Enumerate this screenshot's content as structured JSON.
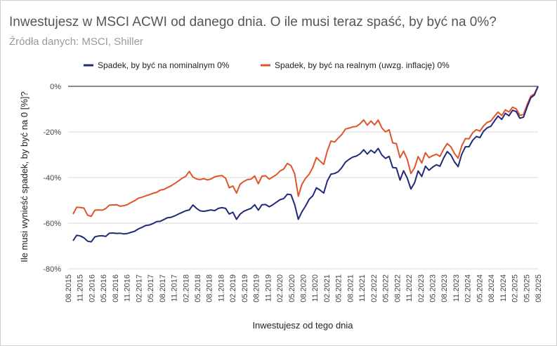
{
  "header": {
    "title": "Inwestujesz w MSCI ACWI od danego dnia. O ile musi teraz spaść, by być na 0%?",
    "subtitle": "Źródła danych: MSCI, Shiller"
  },
  "colors": {
    "nominal": "#1f2a7a",
    "real": "#e0542a",
    "grid": "#d9d9d9",
    "zero_line": "#444444"
  },
  "chart_data": {
    "type": "line",
    "xlabel": "Inwestujesz od tego dnia",
    "ylabel": "Ile musi wynieść spadek, by być na 0 [%]?",
    "ylim": [
      -80,
      0
    ],
    "yticks": [
      0,
      -20,
      -40,
      -60,
      -80
    ],
    "ytick_labels": [
      "0%",
      "-20%",
      "-40%",
      "-60%",
      "-80%"
    ],
    "grid": true,
    "legend_position": "top",
    "x_tick_labels": [
      "08.2015",
      "11.2015",
      "02.2016",
      "05.2016",
      "08.2016",
      "11.2016",
      "02.2017",
      "05.2017",
      "08.2017",
      "11.2017",
      "02.2018",
      "05.2018",
      "08.2018",
      "11.2018",
      "02.2019",
      "05.2019",
      "08.2019",
      "11.2019",
      "02.2020",
      "05.2020",
      "08.2020",
      "11.2020",
      "02.2021",
      "05.2021",
      "08.2021",
      "11.2021",
      "02.2022",
      "05.2022",
      "08.2022",
      "11.2022",
      "02.2023",
      "05.2023",
      "08.2023",
      "11.2023",
      "02.2024",
      "05.2024",
      "08.2024",
      "11.2024",
      "02.2025",
      "05.2025",
      "08.2025"
    ],
    "x_start": "08.2015",
    "x_end": "08.2025",
    "series": [
      {
        "name": "Spadek, by być na nominalnym 0%",
        "values": [
          -67.7,
          -65.3,
          -65.6,
          -66.4,
          -67.9,
          -68.2,
          -66.0,
          -65.6,
          -65.5,
          -65.8,
          -64.4,
          -64.3,
          -64.5,
          -64.4,
          -64.7,
          -64.5,
          -64.0,
          -63.5,
          -62.5,
          -61.8,
          -61.0,
          -60.8,
          -60.2,
          -59.3,
          -59.2,
          -58.4,
          -57.6,
          -57.4,
          -56.8,
          -56.0,
          -55.3,
          -54.6,
          -54.2,
          -52.0,
          -53.5,
          -54.6,
          -54.8,
          -54.5,
          -54.2,
          -54.5,
          -53.5,
          -53.2,
          -53.5,
          -56.0,
          -55.2,
          -58.3,
          -56.0,
          -54.8,
          -54.1,
          -53.5,
          -51.9,
          -54.3,
          -51.9,
          -51.8,
          -52.8,
          -51.9,
          -50.8,
          -49.7,
          -49.2,
          -47.3,
          -47.5,
          -51.8,
          -58.3,
          -55.0,
          -52.5,
          -49.5,
          -48.0,
          -44.5,
          -45.5,
          -46.8,
          -41.5,
          -38.5,
          -38.2,
          -37.4,
          -35.6,
          -33.2,
          -32.0,
          -31.0,
          -30.6,
          -29.6,
          -27.8,
          -29.7,
          -28.0,
          -29.2,
          -27.2,
          -30.1,
          -31.6,
          -30.7,
          -35.6,
          -35.8,
          -41.1,
          -37.0,
          -40.2,
          -45.0,
          -42.3,
          -37.1,
          -39.5,
          -35.0,
          -36.8,
          -35.4,
          -34.4,
          -35.0,
          -31.5,
          -28.6,
          -30.1,
          -33.1,
          -35.2,
          -29.8,
          -26.5,
          -26.5,
          -23.7,
          -22.0,
          -22.5,
          -19.7,
          -18.2,
          -17.5,
          -15.2,
          -13.0,
          -14.5,
          -11.8,
          -12.9,
          -10.5,
          -11.1,
          -14.0,
          -13.5,
          -9.0,
          -5.0,
          -3.8,
          0.0
        ]
      },
      {
        "name": "Spadek, by być na realnym (uwzg. inflację) 0%",
        "values": [
          -56.0,
          -53.0,
          -53.1,
          -53.4,
          -56.5,
          -57.0,
          -54.3,
          -54.2,
          -54.3,
          -53.6,
          -52.1,
          -52.0,
          -51.9,
          -52.6,
          -52.3,
          -51.8,
          -50.9,
          -50.1,
          -49.0,
          -48.6,
          -48.0,
          -47.5,
          -46.9,
          -46.5,
          -45.5,
          -45.2,
          -44.4,
          -43.6,
          -42.6,
          -41.5,
          -40.3,
          -39.5,
          -37.3,
          -39.8,
          -40.6,
          -40.9,
          -40.5,
          -41.0,
          -40.6,
          -39.7,
          -39.3,
          -39.1,
          -40.3,
          -44.5,
          -43.7,
          -46.8,
          -42.9,
          -41.7,
          -40.9,
          -40.7,
          -39.3,
          -42.7,
          -39.4,
          -39.2,
          -40.7,
          -39.7,
          -38.7,
          -37.1,
          -36.2,
          -33.8,
          -34.8,
          -38.3,
          -48.2,
          -43.0,
          -40.3,
          -38.5,
          -35.6,
          -31.2,
          -32.8,
          -34.2,
          -28.3,
          -24.0,
          -24.4,
          -22.7,
          -21.1,
          -18.7,
          -18.3,
          -17.8,
          -17.6,
          -16.4,
          -14.7,
          -17.0,
          -15.2,
          -16.9,
          -14.8,
          -18.2,
          -20.0,
          -19.0,
          -24.8,
          -25.1,
          -31.3,
          -28.4,
          -32.0,
          -38.2,
          -35.7,
          -30.8,
          -33.6,
          -29.1,
          -31.3,
          -30.4,
          -29.8,
          -30.7,
          -27.6,
          -25.1,
          -26.5,
          -29.4,
          -31.5,
          -26.1,
          -22.9,
          -23.0,
          -20.4,
          -19.0,
          -19.6,
          -17.4,
          -15.8,
          -15.2,
          -13.2,
          -11.3,
          -12.8,
          -10.3,
          -11.3,
          -9.1,
          -9.9,
          -12.7,
          -12.4,
          -8.0,
          -4.3,
          -3.3,
          0.0
        ]
      }
    ]
  }
}
